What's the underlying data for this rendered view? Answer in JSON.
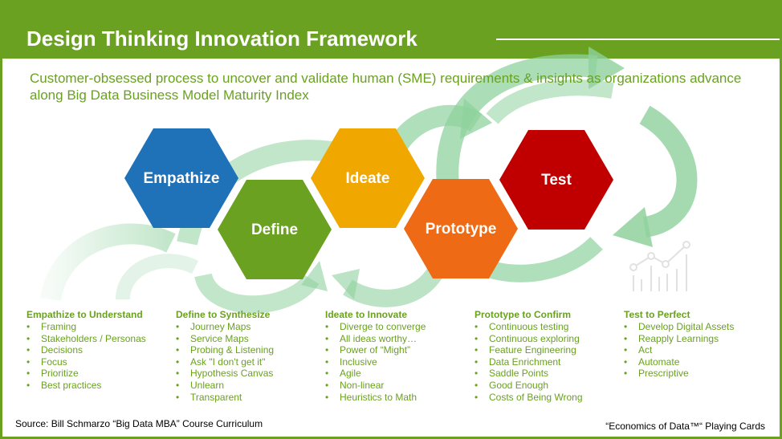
{
  "title": "Design Thinking Innovation Framework",
  "subtitle": "Customer-obsessed process to uncover and validate human (SME) requirements & insights as organizations advance along Big Data Business Model Maturity Index",
  "colors": {
    "brand_green": "#6aa121",
    "arrow_green": "#8fd19e",
    "empathize": "#1f72b8",
    "define": "#6aa121",
    "ideate": "#f0a800",
    "prototype": "#ee6a14",
    "test": "#c00000"
  },
  "stages": [
    {
      "name": "Empathize",
      "color": "#1f72b8"
    },
    {
      "name": "Define",
      "color": "#6aa121"
    },
    {
      "name": "Ideate",
      "color": "#f0a800"
    },
    {
      "name": "Prototype",
      "color": "#ee6a14"
    },
    {
      "name": "Test",
      "color": "#c00000"
    }
  ],
  "columns": [
    {
      "heading": "Empathize to Understand",
      "items": [
        "Framing",
        "Stakeholders / Personas",
        "Decisions",
        "Focus",
        "Prioritize",
        "Best practices"
      ]
    },
    {
      "heading": "Define to Synthesize",
      "items": [
        "Journey Maps",
        "Service Maps",
        "Probing & Listening",
        "Ask \"I don't get it\"",
        "Hypothesis Canvas",
        "Unlearn",
        "Transparent"
      ]
    },
    {
      "heading": "Ideate to Innovate",
      "items": [
        "Diverge to converge",
        "All ideas worthy…",
        "Power of “Might”",
        "Inclusive",
        "Agile",
        "Non-linear",
        "Heuristics to Math"
      ]
    },
    {
      "heading": "Prototype to Confirm",
      "items": [
        "Continuous testing",
        "Continuous exploring",
        "Feature Engineering",
        "Data Enrichment",
        "Saddle Points",
        "Good Enough",
        "Costs of Being Wrong"
      ]
    },
    {
      "heading": "Test to Perfect",
      "items": [
        "Develop Digital Assets",
        "Reapply Learnings",
        "Act",
        "Automate",
        "Prescriptive"
      ]
    }
  ],
  "icons": [
    "chart-line-icon"
  ],
  "source": "Source: Bill Schmarzo “Big Data MBA” Course Curriculum",
  "footer_right": "“Economics of Data™“ Playing Cards"
}
